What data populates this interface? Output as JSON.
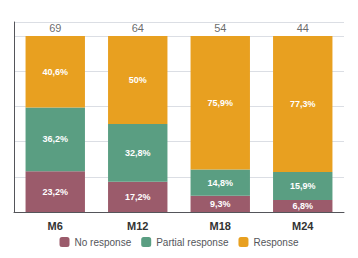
{
  "chart_data": {
    "type": "bar",
    "stacked": true,
    "categories": [
      "M6",
      "M12",
      "M18",
      "M24"
    ],
    "series": [
      {
        "name": "No response",
        "color": "#9b5b6b",
        "values": [
          23.2,
          17.2,
          9.3,
          6.8
        ],
        "value_labels": [
          "23,2%",
          "17,2%",
          "9,3%",
          "6,8%"
        ]
      },
      {
        "name": "Partial response",
        "color": "#5a9e82",
        "values": [
          36.2,
          32.8,
          14.8,
          15.9
        ],
        "value_labels": [
          "36,2%",
          "32,8%",
          "14,8%",
          "15,9%"
        ]
      },
      {
        "name": "Response",
        "color": "#e8a020",
        "values": [
          40.6,
          50.0,
          75.9,
          77.3
        ],
        "value_labels": [
          "40,6%",
          "50%",
          "75,9%",
          "77,3%"
        ]
      }
    ],
    "ylim": [
      0,
      108
    ],
    "yticks": [
      0,
      20,
      40,
      60,
      80,
      100
    ],
    "grid": true,
    "tick_labels": "x",
    "data_labels": true,
    "legend": "bottom",
    "annotations": [
      {
        "category": "M6",
        "text": "69"
      },
      {
        "category": "M12",
        "text": "64"
      },
      {
        "category": "M18",
        "text": "54"
      },
      {
        "category": "M24",
        "text": "44"
      }
    ]
  }
}
